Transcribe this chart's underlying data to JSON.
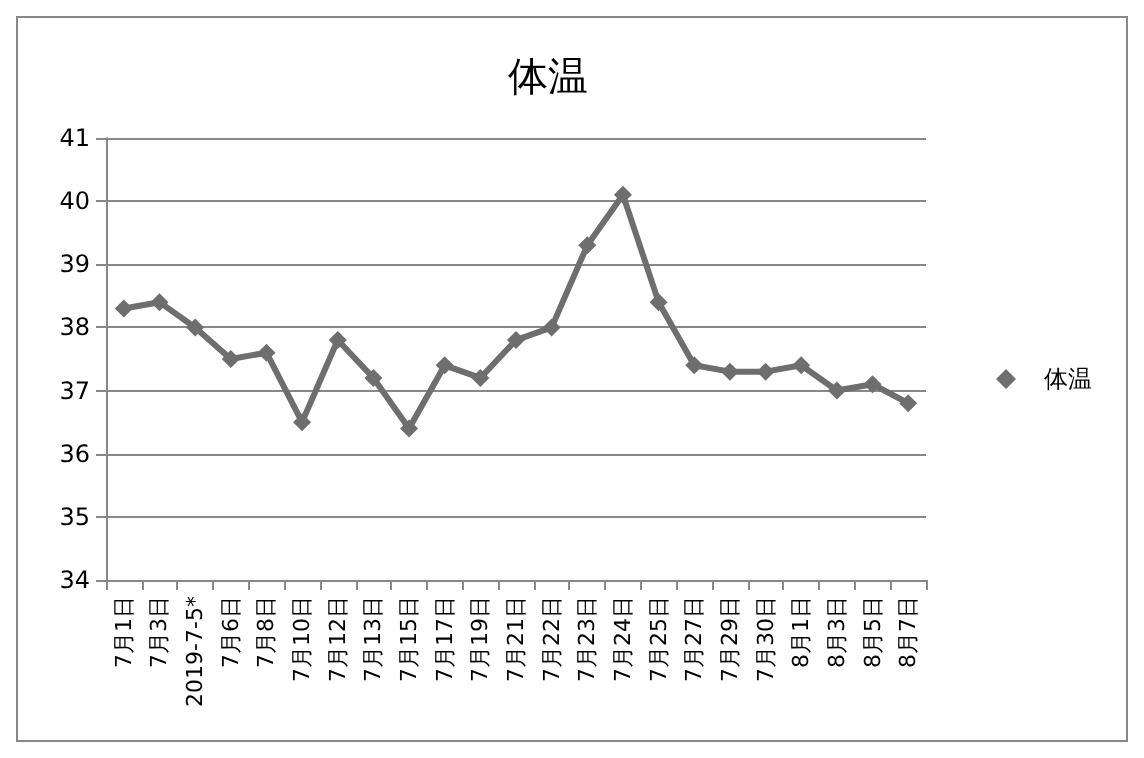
{
  "chart_data": {
    "type": "line",
    "title": "体温",
    "categories": [
      "7月1日",
      "7月3日",
      "2019-7-5*",
      "7月6日",
      "7月8日",
      "7月10日",
      "7月12日",
      "7月13日",
      "7月15日",
      "7月17日",
      "7月19日",
      "7月21日",
      "7月22日",
      "7月23日",
      "7月24日",
      "7月25日",
      "7月27日",
      "7月29日",
      "7月30日",
      "8月1日",
      "8月3日",
      "8月5日",
      "8月7日"
    ],
    "series": [
      {
        "name": "体温",
        "color": "#6e6e6e",
        "values": [
          38.3,
          38.4,
          38.0,
          37.5,
          37.6,
          36.5,
          37.8,
          37.2,
          36.4,
          37.4,
          37.2,
          37.8,
          38.0,
          39.3,
          40.1,
          38.4,
          37.4,
          37.3,
          37.3,
          37.4,
          37.0,
          37.1,
          36.8
        ]
      }
    ],
    "ylim": [
      34,
      41
    ],
    "yticks": [
      34,
      35,
      36,
      37,
      38,
      39,
      40,
      41
    ],
    "grid": "y",
    "legend": "right",
    "marker": "diamond",
    "line_style": "solid"
  }
}
